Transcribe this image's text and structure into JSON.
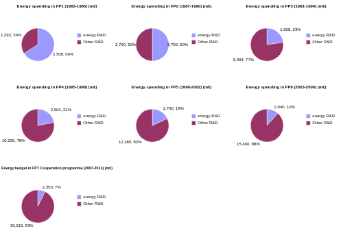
{
  "chart_data": [
    {
      "type": "pie",
      "title": "Energy spending in FP1 (1983-1986) (m€)",
      "categories": [
        "energy R&D",
        "Other R&D"
      ],
      "values": [
        2508,
        1292
      ],
      "value_labels": [
        "2,508, 66%",
        "1,292, 34%"
      ],
      "colors": [
        "#9999ff",
        "#993366"
      ],
      "legend": "right",
      "data_labels": true
    },
    {
      "type": "pie",
      "title": "Energy spending in FP2 (1987-1990) (m€)",
      "categories": [
        "energy R&D",
        "Other R&D"
      ],
      "values": [
        2700,
        2700
      ],
      "value_labels": [
        "2,700, 50%",
        "2,700, 50%"
      ],
      "colors": [
        "#9999ff",
        "#993366"
      ],
      "legend": "right",
      "data_labels": true
    },
    {
      "type": "pie",
      "title": "Energy spending in FP3 (1991-1994) (m€)",
      "categories": [
        "energy R&D",
        "Other R&D"
      ],
      "values": [
        1508,
        5094
      ],
      "value_labels": [
        "1,508, 23%",
        "5,094, 77%"
      ],
      "colors": [
        "#9999ff",
        "#993366"
      ],
      "legend": "right",
      "data_labels": true
    },
    {
      "type": "pie",
      "title": "Energy spending in FP4 (1995-1998) (m€)",
      "categories": [
        "energy R&D",
        "Other R&D"
      ],
      "values": [
        2904,
        10296
      ],
      "value_labels": [
        "2,904, 22%",
        "10,296, 78%"
      ],
      "colors": [
        "#9999ff",
        "#993366"
      ],
      "legend": "right",
      "data_labels": true
    },
    {
      "type": "pie",
      "title": "Energy spending in FP5 (1998-2002) (m€)",
      "categories": [
        "energy R&D",
        "Other R&D"
      ],
      "values": [
        2700,
        12280
      ],
      "value_labels": [
        "2,700, 18%",
        "12,280, 82%"
      ],
      "colors": [
        "#9999ff",
        "#993366"
      ],
      "legend": "right",
      "data_labels": true
    },
    {
      "type": "pie",
      "title": "Energy spending in FP6 (2003-2006) (m€)",
      "categories": [
        "energy R&D",
        "Other R&D"
      ],
      "values": [
        2040,
        15460
      ],
      "value_labels": [
        "2,040, 12%",
        "15,460, 88%"
      ],
      "colors": [
        "#9999ff",
        "#993366"
      ],
      "legend": "right",
      "data_labels": true
    },
    {
      "type": "pie",
      "title": "Energy budget in FP7 Cooperation programme (2007-2013) (m€)",
      "categories": [
        "energy R&D",
        "Other R&D"
      ],
      "values": [
        2350,
        30015
      ],
      "value_labels": [
        "2,350, 7%",
        "30,015, 93%"
      ],
      "colors": [
        "#9999ff",
        "#993366"
      ],
      "legend": "right",
      "data_labels": true
    }
  ]
}
